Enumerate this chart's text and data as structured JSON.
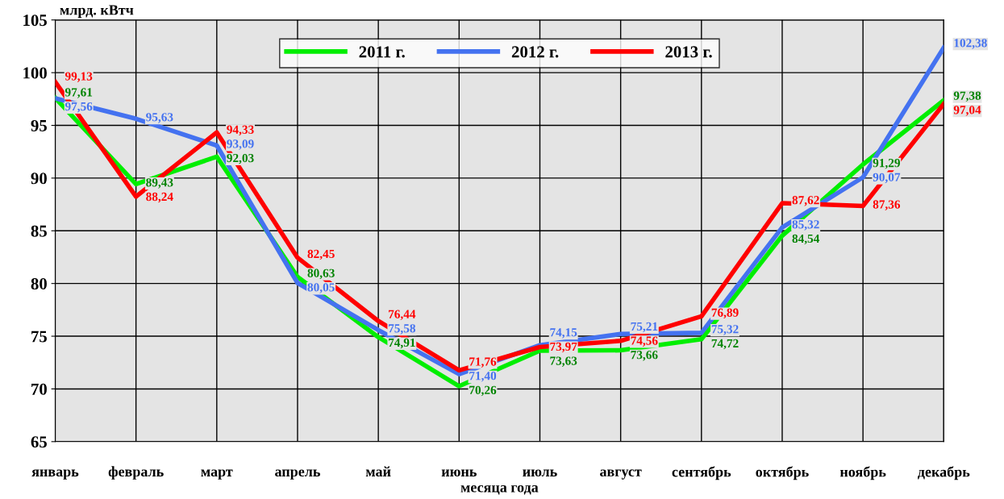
{
  "chart_data": {
    "type": "line",
    "xlabel": "месяца года",
    "ylabel": "млрд. кВтч",
    "categories": [
      "январь",
      "февраль",
      "март",
      "апрель",
      "май",
      "июнь",
      "июль",
      "август",
      "сентябрь",
      "октябрь",
      "ноябрь",
      "декабрь"
    ],
    "series": [
      {
        "name": "2011 г.",
        "color": "#00ee00",
        "values": [
          97.61,
          89.43,
          92.03,
          80.63,
          74.91,
          70.26,
          73.63,
          73.66,
          74.72,
          84.54,
          91.29,
          97.38
        ],
        "value_labels": [
          "97,61",
          "89,43",
          "92,03",
          "80,63",
          "74,91",
          "70,26",
          "73,63",
          "73,66",
          "74,72",
          "84,54",
          "91,29",
          "97,38"
        ]
      },
      {
        "name": "2012 г.",
        "color": "#4472f0",
        "values": [
          97.56,
          95.63,
          93.09,
          80.05,
          75.58,
          71.4,
          74.15,
          75.21,
          75.32,
          85.32,
          90.07,
          102.38
        ],
        "value_labels": [
          "97,56",
          "95,63",
          "93,09",
          "80,05",
          "75,58",
          "71,40",
          "74,15",
          "75,21",
          "75,32",
          "85,32",
          "90,07",
          "102,38"
        ]
      },
      {
        "name": "2013 г.",
        "color": "#ff0000",
        "values": [
          99.13,
          88.24,
          94.33,
          82.45,
          76.44,
          71.76,
          73.97,
          74.56,
          76.89,
          87.62,
          87.36,
          97.04
        ],
        "value_labels": [
          "99,13",
          "88,24",
          "94,33",
          "82,45",
          "76,44",
          "71,76",
          "73,97",
          "74,56",
          "76,89",
          "87,62",
          "87,36",
          "97,04"
        ]
      }
    ],
    "ylim": [
      65,
      105
    ],
    "yticks": [
      65,
      70,
      75,
      80,
      85,
      90,
      95,
      100,
      105
    ],
    "grid": true,
    "legend": "top",
    "marker": "none",
    "line_style": "solid"
  }
}
